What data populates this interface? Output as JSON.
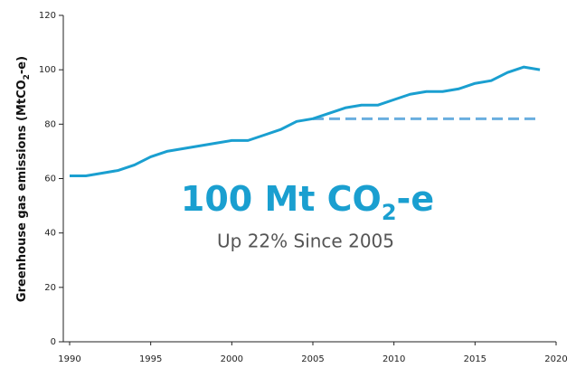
{
  "chart_data": {
    "type": "line",
    "y_label": {
      "text": "Greenhouse gas emissions (MtCO",
      "sub": "2",
      "suffix": "-e)"
    },
    "annotation": {
      "headline": {
        "text": "100 Mt CO",
        "sub": "2",
        "suffix": "-e"
      },
      "subheadline": "Up 22% Since 2005",
      "color": "#1a9fd0"
    },
    "x": [
      1990,
      1991,
      1992,
      1993,
      1994,
      1995,
      1996,
      1997,
      1998,
      1999,
      2000,
      2001,
      2002,
      2003,
      2004,
      2005,
      2006,
      2007,
      2008,
      2009,
      2010,
      2011,
      2012,
      2013,
      2014,
      2015,
      2016,
      2017,
      2018,
      2019
    ],
    "series": [
      {
        "color": "#1a9fd0",
        "values": [
          61,
          61,
          62,
          63,
          65,
          68,
          70,
          71,
          72,
          73,
          74,
          74,
          76,
          78,
          81,
          82,
          84,
          86,
          87,
          87,
          89,
          91,
          92,
          92,
          93,
          95,
          96,
          99,
          101,
          100
        ]
      }
    ],
    "reference_line": {
      "value": 82,
      "x": [
        2005,
        2019
      ],
      "color": "#6aaedf",
      "dashed": true
    },
    "xlim": [
      1990,
      2020
    ],
    "xticks": [
      1990,
      1995,
      2000,
      2005,
      2010,
      2015,
      2020
    ],
    "ylim": [
      0,
      120
    ],
    "yticks": [
      0,
      20,
      40,
      60,
      80,
      100,
      120
    ],
    "grid": false
  }
}
